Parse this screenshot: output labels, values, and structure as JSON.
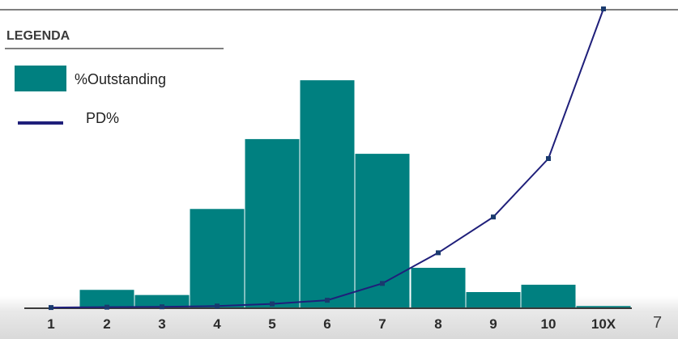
{
  "legend": {
    "title": "LEGENDA",
    "bar_label": "%Outstanding",
    "line_label": "PD%"
  },
  "page_number": "7",
  "colors": {
    "bar": "#008080",
    "line": "#1f1f7a",
    "marker": "#1a3a6e"
  },
  "chart_data": {
    "type": "bar",
    "categories": [
      "1",
      "2",
      "3",
      "4",
      "5",
      "6",
      "7",
      "8",
      "9",
      "10",
      "10X"
    ],
    "series": [
      {
        "name": "%Outstanding",
        "type": "bar",
        "values": [
          0,
          2.5,
          1.8,
          13.5,
          23,
          31,
          21,
          5.5,
          2.2,
          3.2,
          0.3
        ]
      },
      {
        "name": "PD%",
        "type": "line",
        "values": [
          0.1,
          0.15,
          0.2,
          0.3,
          0.6,
          1.1,
          3.4,
          7.6,
          12.5,
          20.5,
          41
        ]
      }
    ],
    "xlabel": "",
    "ylabel": "",
    "bar_ylim": [
      0,
      33
    ],
    "line_ylim": [
      0,
      41
    ],
    "grid": false,
    "legend_position": "top-left"
  }
}
